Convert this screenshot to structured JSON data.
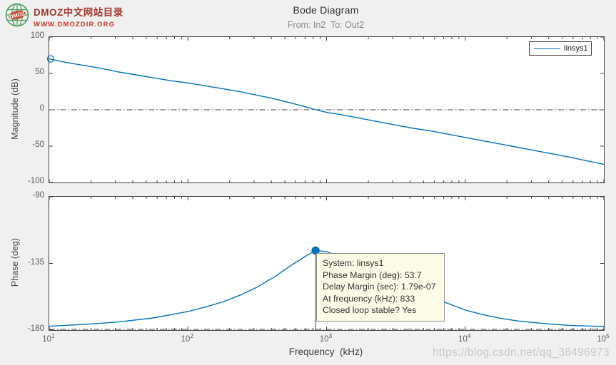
{
  "logo": {
    "line1": "DMOZ中文网站目录",
    "line2": "WWW.DMOZDIR.ORG",
    "icon_text": "DMOZ"
  },
  "header": {
    "title": "Bode Diagram",
    "subtitle": "From: In2  To: Out2"
  },
  "legend": {
    "label": "linsys1"
  },
  "tooltip": {
    "lines": [
      "System: linsys1",
      "Phase Margin (deg): 53.7",
      "Delay Margin (sec): 1.79e-07",
      "At frequency (kHz): 833",
      "Closed loop stable? Yes"
    ]
  },
  "watermark": {
    "url": "https://blog.csdn.net/qq_38496973"
  },
  "colors": {
    "line": "#0072BD",
    "axis": "#404040",
    "tick_label": "#5a5a5a",
    "ref_line": "#454545",
    "margin_line": "#4a4a4a",
    "tooltip_bg": "#FBFBE8",
    "figure_bg": "#F0F0F0",
    "logo_green": "#4a9e5c",
    "logo_red": "#C0452B"
  },
  "chart_data": [
    {
      "type": "line",
      "name": "magnitude",
      "ylabel": "Magnitude (dB)",
      "xscale": "log",
      "xlim_khz": [
        10,
        100000
      ],
      "x_tick_exponents": [
        1,
        2,
        3,
        4,
        5
      ],
      "ylim": [
        100,
        -100
      ],
      "yticks": [
        100,
        50,
        0,
        -50,
        -100
      ],
      "ref_line_y": 0,
      "marker": {
        "x_khz": 10,
        "y": 70,
        "style": "open-circle"
      },
      "series": [
        {
          "name": "linsys1",
          "color": "#0072BD",
          "points_khz_val": [
            [
              10,
              70
            ],
            [
              13.3,
              65
            ],
            [
              17.8,
              61
            ],
            [
              23.7,
              57
            ],
            [
              31.6,
              52
            ],
            [
              42.2,
              48
            ],
            [
              56.2,
              44
            ],
            [
              75,
              40
            ],
            [
              100,
              37
            ],
            [
              133,
              33
            ],
            [
              178,
              29
            ],
            [
              237,
              25
            ],
            [
              316,
              20
            ],
            [
              422,
              15
            ],
            [
              562,
              9
            ],
            [
              708,
              4
            ],
            [
              833,
              0
            ],
            [
              1000,
              -3.5
            ],
            [
              1330,
              -7.5
            ],
            [
              1780,
              -12
            ],
            [
              2370,
              -16.5
            ],
            [
              3160,
              -21
            ],
            [
              4220,
              -25.5
            ],
            [
              5620,
              -29
            ],
            [
              7500,
              -33.5
            ],
            [
              10000,
              -38
            ],
            [
              13300,
              -42.5
            ],
            [
              17800,
              -47
            ],
            [
              23700,
              -51.5
            ],
            [
              31600,
              -56
            ],
            [
              42200,
              -60.5
            ],
            [
              56200,
              -65
            ],
            [
              75000,
              -70
            ],
            [
              100000,
              -75
            ]
          ]
        }
      ]
    },
    {
      "type": "line",
      "name": "phase",
      "ylabel": "Phase (deg)",
      "xlabel": "Frequency  (kHz)",
      "xscale": "log",
      "xlim_khz": [
        10,
        100000
      ],
      "x_tick_exponents": [
        1,
        2,
        3,
        4,
        5
      ],
      "ylim": [
        -90,
        -180
      ],
      "yticks": [
        -90,
        -135,
        -180
      ],
      "ref_line_y": -180,
      "marker": {
        "x_khz": 833,
        "y": -126.3,
        "style": "filled-circle"
      },
      "margin_line": {
        "x_khz": 833,
        "y1": -126.3,
        "y2": -180
      },
      "phase_margin_deg": 53.7,
      "delay_margin_sec": "1.79e-07",
      "at_frequency_khz": 833,
      "closed_loop_stable": "Yes",
      "series": [
        {
          "name": "linsys1",
          "color": "#0072BD",
          "points_khz_val": [
            [
              10,
              -177.4
            ],
            [
              17.8,
              -176.2
            ],
            [
              31.6,
              -174.5
            ],
            [
              56.2,
              -171.8
            ],
            [
              100,
              -167.5
            ],
            [
              133,
              -164.5
            ],
            [
              178,
              -161
            ],
            [
              237,
              -156.5
            ],
            [
              316,
              -151
            ],
            [
              422,
              -144
            ],
            [
              562,
              -136
            ],
            [
              708,
              -130
            ],
            [
              833,
              -126.3
            ],
            [
              1000,
              -127
            ],
            [
              1260,
              -130.5
            ],
            [
              1780,
              -137.5
            ],
            [
              2370,
              -144
            ],
            [
              3160,
              -150
            ],
            [
              4220,
              -155
            ],
            [
              5620,
              -158.5
            ],
            [
              7500,
              -162
            ],
            [
              10000,
              -166.5
            ],
            [
              13300,
              -169.5
            ],
            [
              17800,
              -172
            ],
            [
              23700,
              -173.8
            ],
            [
              31600,
              -175
            ],
            [
              42200,
              -176
            ],
            [
              56200,
              -176.8
            ],
            [
              75000,
              -177.2
            ],
            [
              100000,
              -177.6
            ]
          ]
        }
      ]
    }
  ]
}
